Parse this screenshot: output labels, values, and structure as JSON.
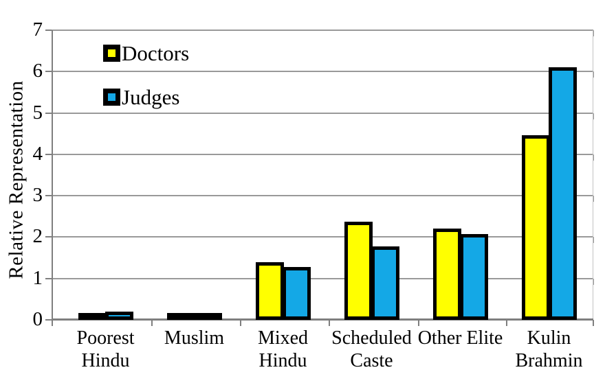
{
  "chart_data": {
    "type": "bar",
    "title": "",
    "xlabel": "",
    "ylabel": "Relative Representation",
    "ylim": [
      0,
      7
    ],
    "yticks": [
      0,
      1,
      2,
      3,
      4,
      5,
      6,
      7
    ],
    "grid": true,
    "legend_position": "upper-left-inside",
    "categories": [
      "Poorest\nHindu",
      "Muslim",
      "Mixed\nHindu",
      "Scheduled\nCaste",
      "Other Elite",
      "Kulin\nBrahmin"
    ],
    "series": [
      {
        "name": "Doctors",
        "color": "#FFFF00",
        "values": [
          0.09,
          0.14,
          1.4,
          2.38,
          2.21,
          4.47
        ]
      },
      {
        "name": "Judges",
        "color": "#14A8E6",
        "values": [
          0.2,
          0.13,
          1.28,
          1.77,
          2.07,
          6.1
        ]
      }
    ]
  },
  "colors": {
    "background": "#ffffff",
    "gridline": "#999999",
    "axis": "#7f7f7f",
    "right_border": "#c2c2c2",
    "bar_border": "#000000",
    "text": "#000000"
  }
}
